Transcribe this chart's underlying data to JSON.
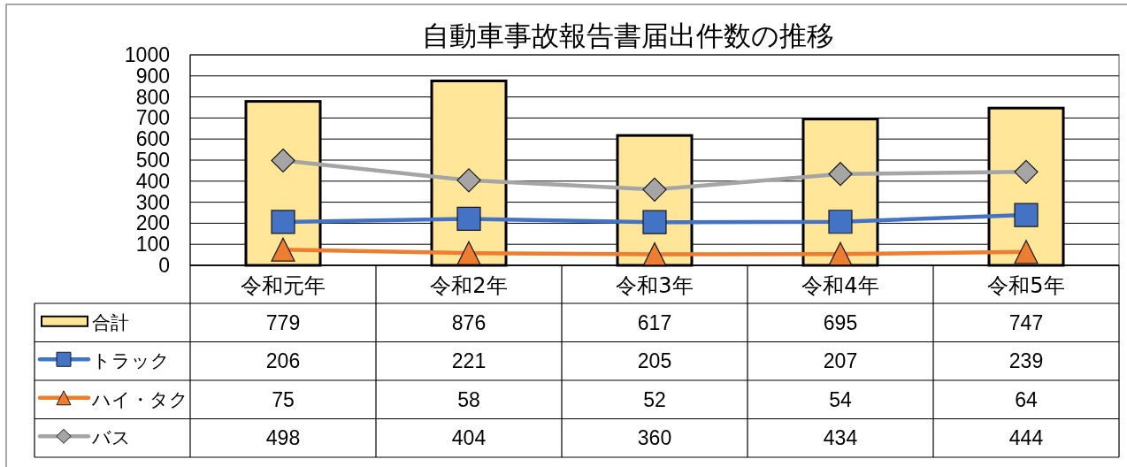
{
  "chart_data": {
    "type": "bar",
    "title": "自動車事故報告書届出件数の推移",
    "categories": [
      "令和元年",
      "令和2年",
      "令和3年",
      "令和4年",
      "令和5年"
    ],
    "series": [
      {
        "name": "合計",
        "color": "#ffe699",
        "values": [
          779,
          876,
          617,
          695,
          747
        ]
      },
      {
        "name": "トラック",
        "type": "line",
        "marker": "square",
        "color": "#4472c4",
        "values": [
          206,
          221,
          205,
          207,
          239
        ]
      },
      {
        "name": "ハイ・タク",
        "type": "line",
        "marker": "triangle",
        "color": "#ed7d31",
        "values": [
          75,
          58,
          52,
          54,
          64
        ]
      },
      {
        "name": "バス",
        "type": "line",
        "marker": "diamond",
        "color": "#a5a5a5",
        "values": [
          498,
          404,
          360,
          434,
          444
        ]
      }
    ],
    "ylim": [
      0,
      1000
    ],
    "yticks": [
      0,
      100,
      200,
      300,
      400,
      500,
      600,
      700,
      800,
      900,
      1000
    ],
    "grid": "y",
    "legend": "bottom left",
    "data_labels": true
  }
}
